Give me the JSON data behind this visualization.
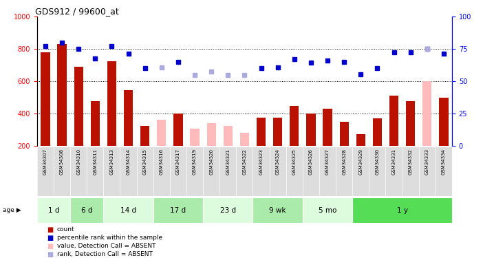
{
  "title": "GDS912 / 99600_at",
  "samples": [
    "GSM34307",
    "GSM34308",
    "GSM34310",
    "GSM34311",
    "GSM34313",
    "GSM34314",
    "GSM34315",
    "GSM34316",
    "GSM34317",
    "GSM34319",
    "GSM34320",
    "GSM34321",
    "GSM34322",
    "GSM34323",
    "GSM34324",
    "GSM34325",
    "GSM34326",
    "GSM34327",
    "GSM34328",
    "GSM34329",
    "GSM34330",
    "GSM34331",
    "GSM34332",
    "GSM34333",
    "GSM34334"
  ],
  "count_values": [
    780,
    830,
    690,
    475,
    725,
    545,
    322,
    null,
    400,
    null,
    null,
    null,
    null,
    375,
    375,
    445,
    400,
    430,
    350,
    270,
    370,
    510,
    475,
    null,
    500
  ],
  "count_absent": [
    null,
    null,
    null,
    null,
    null,
    null,
    null,
    360,
    null,
    305,
    340,
    325,
    280,
    null,
    null,
    null,
    null,
    null,
    null,
    null,
    null,
    null,
    null,
    600,
    null
  ],
  "rank_values": [
    820,
    840,
    800,
    740,
    820,
    770,
    680,
    null,
    720,
    null,
    null,
    null,
    null,
    680,
    685,
    735,
    715,
    730,
    720,
    645,
    680,
    780,
    780,
    800,
    770
  ],
  "rank_absent": [
    null,
    null,
    null,
    null,
    null,
    null,
    null,
    685,
    null,
    640,
    660,
    640,
    640,
    null,
    null,
    null,
    null,
    null,
    null,
    null,
    null,
    null,
    null,
    800,
    null
  ],
  "age_groups": [
    {
      "label": "1 d",
      "start": 0,
      "end": 2,
      "color": "#ddfcdd"
    },
    {
      "label": "6 d",
      "start": 2,
      "end": 4,
      "color": "#aaeaaa"
    },
    {
      "label": "14 d",
      "start": 4,
      "end": 7,
      "color": "#ddfcdd"
    },
    {
      "label": "17 d",
      "start": 7,
      "end": 10,
      "color": "#aaeaaa"
    },
    {
      "label": "23 d",
      "start": 10,
      "end": 13,
      "color": "#ddfcdd"
    },
    {
      "label": "9 wk",
      "start": 13,
      "end": 16,
      "color": "#aaeaaa"
    },
    {
      "label": "5 mo",
      "start": 16,
      "end": 19,
      "color": "#ddfcdd"
    },
    {
      "label": "1 y",
      "start": 19,
      "end": 25,
      "color": "#55dd55"
    }
  ],
  "ylim_left": [
    200,
    1000
  ],
  "ylim_right": [
    0,
    100
  ],
  "yticks_left": [
    200,
    400,
    600,
    800,
    1000
  ],
  "yticks_right": [
    0,
    25,
    50,
    75,
    100
  ],
  "bar_color_present": "#bb1100",
  "bar_color_absent": "#ffbbbb",
  "rank_color_present": "#0000cc",
  "rank_color_absent": "#aaaadd",
  "dotted_lines": [
    400,
    600,
    800
  ],
  "bar_width": 0.55
}
